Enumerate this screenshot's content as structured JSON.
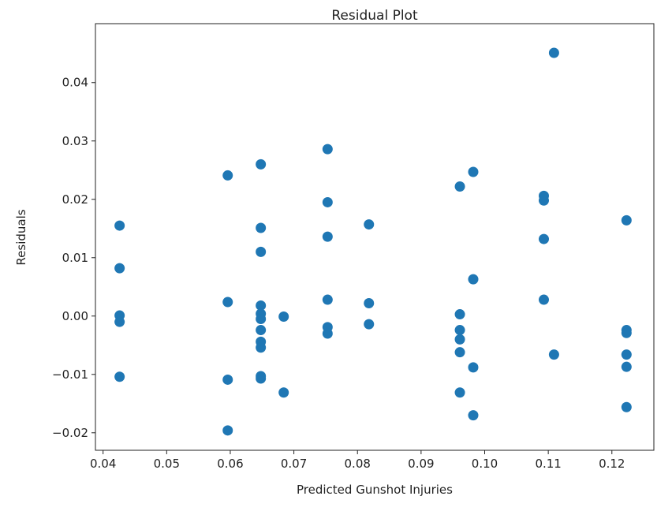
{
  "chart_data": {
    "type": "scatter",
    "title": "Residual Plot",
    "xlabel": "Predicted Gunshot Injuries",
    "ylabel": "Residuals",
    "xlim": [
      0.0388,
      0.1266
    ],
    "ylim": [
      -0.023,
      0.0501
    ],
    "xticks": [
      0.04,
      0.05,
      0.06,
      0.07,
      0.08,
      0.09,
      0.1,
      0.11,
      0.12
    ],
    "xtick_labels": [
      "0.04",
      "0.05",
      "0.06",
      "0.07",
      "0.08",
      "0.09",
      "0.10",
      "0.11",
      "0.12"
    ],
    "yticks": [
      -0.02,
      -0.01,
      0.0,
      0.01,
      0.02,
      0.03,
      0.04
    ],
    "ytick_labels": [
      "−0.02",
      "−0.01",
      "0.00",
      "0.01",
      "0.02",
      "0.03",
      "0.04"
    ],
    "grid": false,
    "color": "#1f77b4",
    "points": [
      [
        0.0426,
        0.0155
      ],
      [
        0.0426,
        0.0082
      ],
      [
        0.0426,
        0.0001
      ],
      [
        0.0426,
        -0.001
      ],
      [
        0.0426,
        -0.0104
      ],
      [
        0.0596,
        0.0241
      ],
      [
        0.0596,
        0.0024
      ],
      [
        0.0596,
        -0.0109
      ],
      [
        0.0596,
        -0.0196
      ],
      [
        0.0648,
        0.026
      ],
      [
        0.0648,
        0.0151
      ],
      [
        0.0648,
        0.011
      ],
      [
        0.0648,
        0.0018
      ],
      [
        0.0648,
        0.0004
      ],
      [
        0.0648,
        -0.0005
      ],
      [
        0.0648,
        -0.0024
      ],
      [
        0.0648,
        -0.0044
      ],
      [
        0.0648,
        -0.0054
      ],
      [
        0.0648,
        -0.0103
      ],
      [
        0.0648,
        -0.0107
      ],
      [
        0.0684,
        -0.0001
      ],
      [
        0.0684,
        -0.0131
      ],
      [
        0.0753,
        0.0286
      ],
      [
        0.0753,
        0.0195
      ],
      [
        0.0753,
        0.0136
      ],
      [
        0.0753,
        0.0028
      ],
      [
        0.0753,
        -0.0019
      ],
      [
        0.0753,
        -0.003
      ],
      [
        0.0818,
        0.0157
      ],
      [
        0.0818,
        0.0022
      ],
      [
        0.0818,
        -0.0014
      ],
      [
        0.0961,
        0.0222
      ],
      [
        0.0961,
        0.0003
      ],
      [
        0.0961,
        -0.0024
      ],
      [
        0.0961,
        -0.004
      ],
      [
        0.0961,
        -0.0062
      ],
      [
        0.0961,
        -0.0131
      ],
      [
        0.0982,
        0.0247
      ],
      [
        0.0982,
        0.0063
      ],
      [
        0.0982,
        -0.0088
      ],
      [
        0.0982,
        -0.017
      ],
      [
        0.1093,
        0.0206
      ],
      [
        0.1093,
        0.0198
      ],
      [
        0.1093,
        0.0132
      ],
      [
        0.1093,
        0.0028
      ],
      [
        0.1109,
        0.0451
      ],
      [
        0.1109,
        -0.0066
      ],
      [
        0.1223,
        0.0164
      ],
      [
        0.1223,
        -0.0024
      ],
      [
        0.1223,
        -0.0029
      ],
      [
        0.1223,
        -0.0066
      ],
      [
        0.1223,
        -0.0087
      ],
      [
        0.1223,
        -0.0156
      ]
    ]
  }
}
